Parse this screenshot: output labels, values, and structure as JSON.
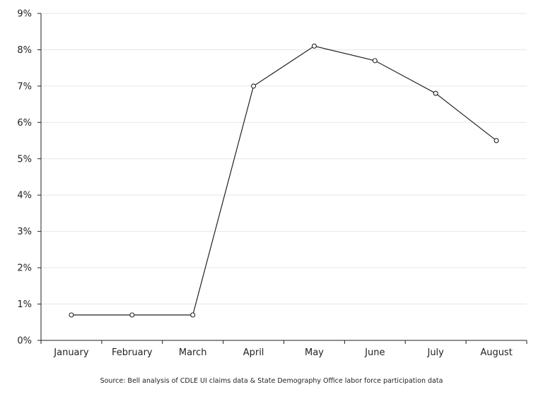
{
  "chart_data": {
    "type": "line",
    "title": "",
    "xlabel": "",
    "ylabel": "",
    "categories": [
      "January",
      "February",
      "March",
      "April",
      "May",
      "June",
      "July",
      "August"
    ],
    "series": [
      {
        "values": [
          0.7,
          0.7,
          0.7,
          7.0,
          8.1,
          7.7,
          6.8,
          5.5
        ]
      }
    ],
    "yticks": [
      0,
      1,
      2,
      3,
      4,
      5,
      6,
      7,
      8,
      9
    ],
    "ytick_labels": [
      "0%",
      "1%",
      "2%",
      "3%",
      "4%",
      "5%",
      "6%",
      "7%",
      "8%",
      "9%"
    ],
    "ylim": [
      0,
      9
    ],
    "grid": true,
    "legend": "none",
    "line_color": "#222222",
    "marker_fill": "#ffffff",
    "grid_color": "#e6e6e6"
  },
  "source_note": "Source: Bell analysis of CDLE UI claims data & State Demography Office labor force participation data"
}
